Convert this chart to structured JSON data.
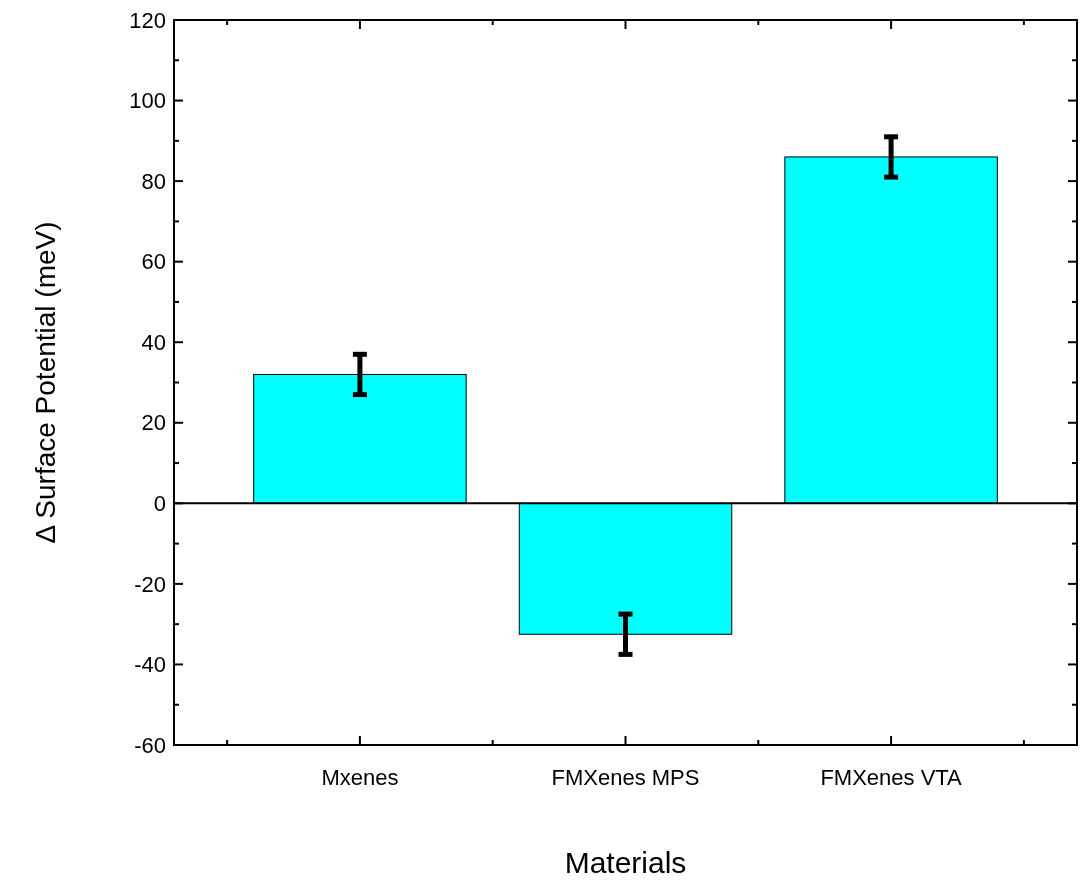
{
  "chart_data": {
    "type": "bar",
    "xlabel": "Materials",
    "ylabel": "Δ Surface Potential (meV)",
    "categories": [
      "Mxenes",
      "FMXenes MPS",
      "FMXenes VTA"
    ],
    "values": [
      32,
      -32.5,
      86
    ],
    "errors": [
      5,
      5,
      5
    ],
    "color": "#00ffff",
    "ylim": [
      -60,
      120
    ],
    "yticks": [
      -60,
      {
        "value": -50,
        "label": null
      },
      -40,
      {
        "value": -30,
        "label": null
      },
      -20,
      {
        "value": -10,
        "label": null
      },
      0,
      {
        "value": 10,
        "label": null
      },
      20,
      {
        "value": 30,
        "label": null
      },
      40,
      {
        "value": 50,
        "label": null
      },
      60,
      {
        "value": 70,
        "label": null
      },
      80,
      {
        "value": 90,
        "label": null
      },
      100,
      {
        "value": 110,
        "label": null
      },
      120
    ],
    "ref_lines": [
      {
        "axis": "y",
        "value": 0,
        "color": "#000000"
      }
    ]
  }
}
